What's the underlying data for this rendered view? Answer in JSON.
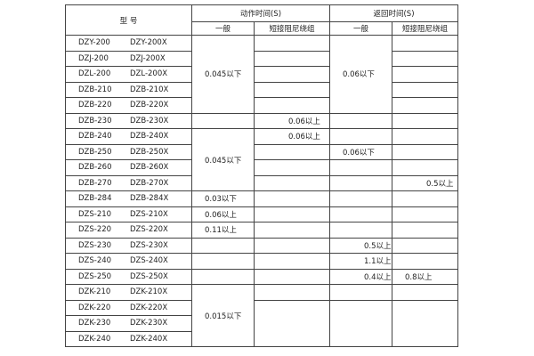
{
  "header": {
    "model": "型  号",
    "action_time": "动作时间(S)",
    "return_time": "返回时间(S)",
    "general": "一般",
    "short_damping": "短接阻尼绕组"
  },
  "rows": [
    {
      "a": "DZY-200",
      "b": "DZY-200X"
    },
    {
      "a": "DZJ-200",
      "b": "DZJ-200X"
    },
    {
      "a": "DZL-200",
      "b": "DZL-200X"
    },
    {
      "a": "DZB-210",
      "b": "DZB-210X"
    },
    {
      "a": "DZB-220",
      "b": "DZB-220X"
    },
    {
      "a": "DZB-230",
      "b": "DZB-230X"
    },
    {
      "a": "DZB-240",
      "b": "DZB-240X"
    },
    {
      "a": "DZB-250",
      "b": "DZB-250X"
    },
    {
      "a": "DZB-260",
      "b": "DZB-260X"
    },
    {
      "a": "DZB-270",
      "b": "DZB-270X"
    },
    {
      "a": "DZB-284",
      "b": "DZB-284X"
    },
    {
      "a": "DZS-210",
      "b": "DZS-210X"
    },
    {
      "a": "DZS-220",
      "b": "DZS-220X"
    },
    {
      "a": "DZS-230",
      "b": "DZS-230X"
    },
    {
      "a": "DZS-240",
      "b": "DZS-240X"
    },
    {
      "a": "DZS-250",
      "b": "DZS-250X"
    },
    {
      "a": "DZK-210",
      "b": "DZK-210X"
    },
    {
      "a": "DZK-220",
      "b": "DZK-220X"
    },
    {
      "a": "DZK-230",
      "b": "DZK-230X"
    },
    {
      "a": "DZK-240",
      "b": "DZK-240X"
    }
  ],
  "values": {
    "act_g_1_5": "0.045以下",
    "act_s_230": "0.06以上",
    "act_s_240": "0.06以上",
    "ret_g_1_5": "0.06以下",
    "act_g_240_270": "0.045以下",
    "ret_g_250": "0.06以下",
    "ret_s_270": "0.5以上",
    "act_g_284": "0.03以下",
    "act_g_s210": "0.06以上",
    "act_g_s220": "0.11以上",
    "ret_g_s230": "0.5以上",
    "ret_g_s240": "1.1以上",
    "ret_g_s250": "0.4以上",
    "ret_s_s250": "0.8以上",
    "act_g_dzk": "0.015以下"
  }
}
